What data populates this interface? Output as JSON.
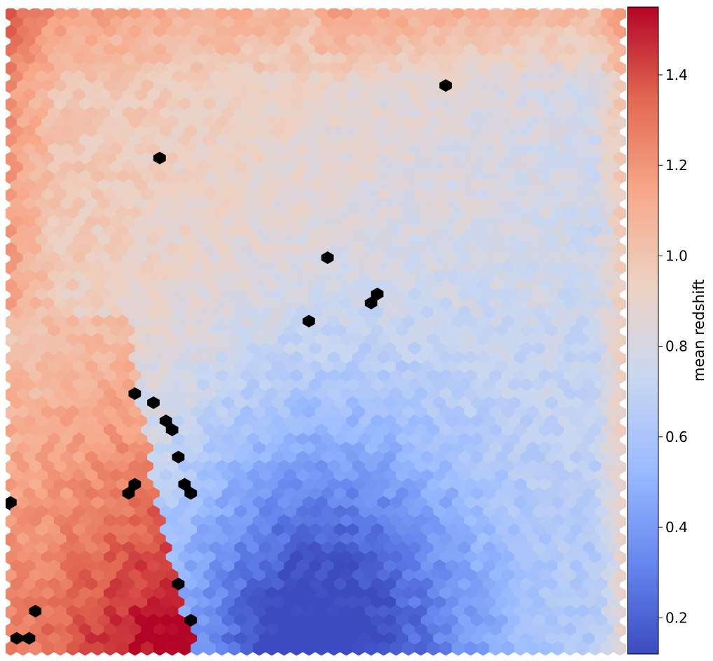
{
  "chart_data": {
    "type": "heatmap",
    "subtype": "hexbin",
    "title": "",
    "xlabel": "",
    "ylabel": "",
    "axes_visible": false,
    "value_range": [
      0.12,
      1.55
    ],
    "colormap": "coolwarm",
    "colormap_stops": [
      "#3b4cc0",
      "#6788ee",
      "#9abbff",
      "#c9d7f0",
      "#edd1c2",
      "#f7a889",
      "#e26952",
      "#b40426"
    ],
    "missing_bin_color": "#000000",
    "grid": {
      "columns": 50,
      "rows": 71
    },
    "colorbar": {
      "label": "mean redshift",
      "ticks": [
        {
          "value": 0.2,
          "label": "0.2"
        },
        {
          "value": 0.4,
          "label": "0.4"
        },
        {
          "value": 0.6,
          "label": "0.6"
        },
        {
          "value": 0.8,
          "label": "0.8"
        },
        {
          "value": 1.0,
          "label": "1.0"
        },
        {
          "value": 1.2,
          "label": "1.2"
        },
        {
          "value": 1.4,
          "label": "1.4"
        }
      ]
    },
    "field_description": "high redshift (~1.0-1.5) in lower-left region and along top/left edges; low redshift (~0.15-0.3) in lower-center; intermediate (~0.6-0.8) in upper-right"
  }
}
